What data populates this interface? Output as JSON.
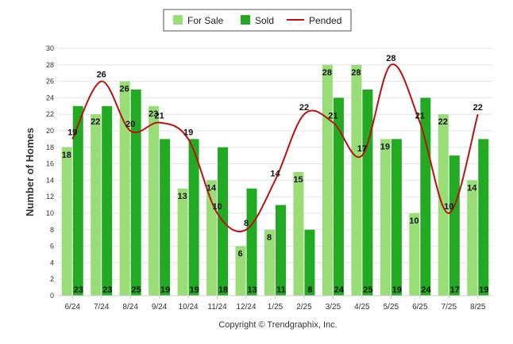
{
  "copyright": "Copyright © Trendgraphix, Inc.",
  "chart_data": {
    "type": "bar",
    "categories": [
      "6/24",
      "7/24",
      "8/24",
      "9/24",
      "10/24",
      "11/24",
      "12/24",
      "1/25",
      "2/25",
      "3/25",
      "4/25",
      "5/25",
      "6/25",
      "7/25",
      "8/25"
    ],
    "ylabel": "Number of Homes",
    "xlabel": "",
    "ylim": [
      0,
      30
    ],
    "yticks": [
      0,
      2,
      4,
      6,
      8,
      10,
      12,
      14,
      16,
      18,
      20,
      22,
      24,
      26,
      28,
      30
    ],
    "grid": true,
    "legend_position": "top-center",
    "series": [
      {
        "name": "For Sale",
        "type": "bar",
        "color": "#99DD77",
        "values": [
          18,
          22,
          26,
          23,
          13,
          14,
          6,
          8,
          15,
          28,
          28,
          19,
          10,
          22,
          14
        ]
      },
      {
        "name": "Sold",
        "type": "bar",
        "color": "#22AA22",
        "values": [
          23,
          23,
          25,
          19,
          19,
          18,
          13,
          11,
          8,
          24,
          25,
          19,
          24,
          17,
          19
        ]
      },
      {
        "name": "Pended",
        "type": "line",
        "color": "#BB1111",
        "values": [
          19,
          26,
          20,
          21,
          19,
          10,
          8,
          14,
          22,
          21,
          17,
          28,
          21,
          10,
          22
        ]
      }
    ]
  }
}
